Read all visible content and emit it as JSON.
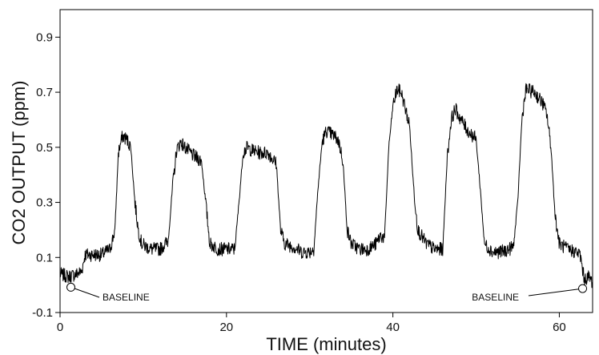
{
  "chart_data": {
    "type": "line",
    "title": "",
    "xlabel": "TIME (minutes)",
    "ylabel": "CO2 OUTPUT (ppm)",
    "xlim": [
      0,
      64
    ],
    "ylim": [
      -0.1,
      1.0
    ],
    "xticks": [
      0,
      20,
      40,
      60
    ],
    "yticks": [
      -0.1,
      0.1,
      0.3,
      0.5,
      0.7,
      0.9
    ],
    "ytick_labels": [
      "-0.1",
      "0.1",
      "0.3",
      "0.5",
      "0.7",
      "0.9"
    ],
    "grid": false,
    "line_color": "#000000",
    "series": [
      {
        "x": [
          0,
          1,
          2,
          2.6,
          3,
          4,
          5,
          6,
          6.6,
          7,
          7.5,
          8,
          8.5,
          9,
          9.4,
          9.8,
          10.3,
          11,
          12,
          13,
          13.5,
          14,
          14.5,
          15,
          16,
          17,
          17.5,
          18,
          19,
          20,
          21,
          21.5,
          22,
          22.5,
          23,
          24,
          25,
          26,
          26.5,
          27,
          28,
          29,
          30,
          30.5,
          31,
          31.5,
          32,
          33,
          33.5,
          34,
          34.5,
          35,
          36,
          37,
          38,
          38.5,
          39,
          39.5,
          40,
          40.5,
          41,
          42,
          42.5,
          43,
          44,
          45,
          46,
          46.5,
          47,
          47.5,
          48,
          49,
          50,
          50.5,
          51,
          52,
          53,
          54,
          54.5,
          55,
          55.5,
          56,
          57,
          58,
          58.5,
          59,
          59.5,
          60,
          61,
          62,
          62.5,
          63,
          63.5,
          64
        ],
        "values": [
          0.04,
          0.03,
          0.04,
          0.05,
          0.11,
          0.11,
          0.11,
          0.13,
          0.2,
          0.48,
          0.54,
          0.53,
          0.5,
          0.3,
          0.2,
          0.15,
          0.14,
          0.13,
          0.13,
          0.16,
          0.35,
          0.49,
          0.52,
          0.5,
          0.47,
          0.45,
          0.3,
          0.15,
          0.13,
          0.13,
          0.13,
          0.3,
          0.48,
          0.5,
          0.49,
          0.48,
          0.48,
          0.44,
          0.2,
          0.15,
          0.14,
          0.12,
          0.12,
          0.13,
          0.35,
          0.52,
          0.56,
          0.54,
          0.52,
          0.45,
          0.2,
          0.15,
          0.13,
          0.13,
          0.15,
          0.18,
          0.17,
          0.5,
          0.65,
          0.71,
          0.7,
          0.58,
          0.35,
          0.2,
          0.15,
          0.13,
          0.13,
          0.45,
          0.6,
          0.64,
          0.61,
          0.56,
          0.53,
          0.35,
          0.15,
          0.12,
          0.12,
          0.13,
          0.14,
          0.3,
          0.6,
          0.71,
          0.7,
          0.66,
          0.62,
          0.5,
          0.25,
          0.15,
          0.13,
          0.12,
          0.11,
          0.02,
          0.03,
          0.01
        ]
      }
    ],
    "annotations": [
      {
        "text": "BASELINE",
        "x": 1.3,
        "y": -0.008
      },
      {
        "text": "BASELINE",
        "x": 62.8,
        "y": -0.013
      }
    ]
  }
}
